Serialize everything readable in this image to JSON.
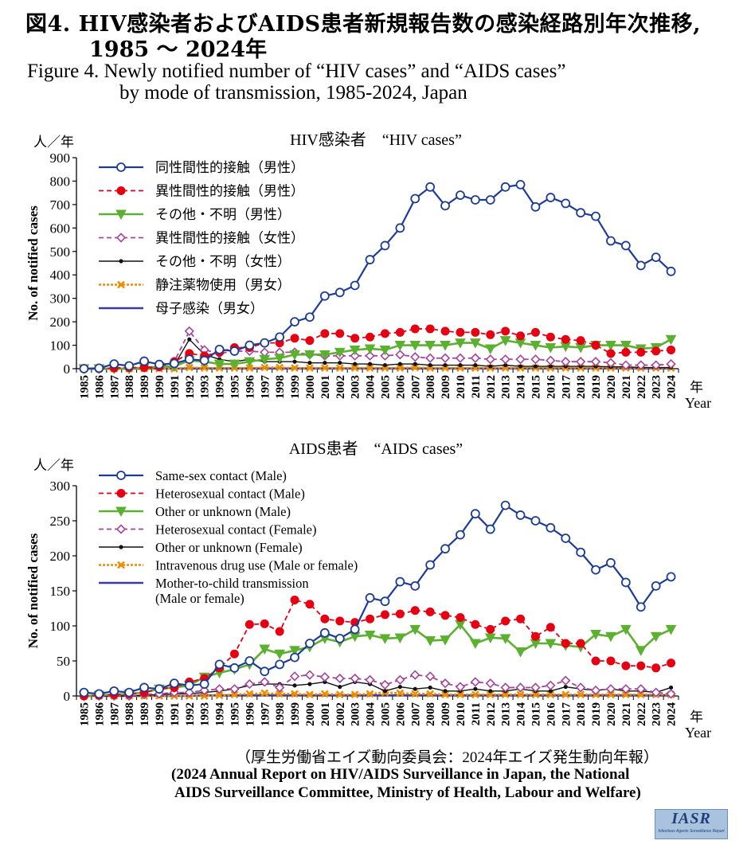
{
  "titles": {
    "jp_line1": "図4. HIV感染者およびAIDS患者新規報告数の感染経路別年次推移,",
    "jp_line2": "1985 ～ 2024年",
    "en_line1": "Figure 4. Newly notified number of “HIV cases” and “AIDS cases”",
    "en_line2": "by mode of transmission, 1985-2024, Japan"
  },
  "source": {
    "jp": "（厚生労働省エイズ動向委員会：2024年エイズ発生動向年報）",
    "en_line1": "(2024 Annual Report on HIV/AIDS Surveillance in Japan, the National",
    "en_line2": "AIDS Surveillance Committee, Ministry of Health, Labour and Welfare)"
  },
  "logo": {
    "main": "IASR",
    "sub": "Infectious Agents Surveillance Report"
  },
  "colors": {
    "navy": "#1c3c96",
    "red": "#e60012",
    "green": "#5bb030",
    "purple": "#a4449c",
    "black": "#111111",
    "orange": "#f08c00",
    "indigo": "#3a3aa0"
  },
  "chart_data": [
    {
      "type": "line",
      "title": "HIV感染者　“HIV cases”",
      "unit_label": "人／年",
      "ylabel": "No. of notified cases",
      "xlabel_jp": "年",
      "xlabel_en": "Year",
      "ylim": [
        0,
        900
      ],
      "yticks": [
        0,
        100,
        200,
        300,
        400,
        500,
        600,
        700,
        800,
        900
      ],
      "legend_position": "top-left",
      "x": [
        1985,
        1986,
        1987,
        1988,
        1989,
        1990,
        1991,
        1992,
        1993,
        1994,
        1995,
        1996,
        1997,
        1998,
        1999,
        2000,
        2001,
        2002,
        2003,
        2004,
        2005,
        2006,
        2007,
        2008,
        2009,
        2010,
        2011,
        2012,
        2013,
        2014,
        2015,
        2016,
        2017,
        2018,
        2019,
        2020,
        2021,
        2022,
        2023,
        2024
      ],
      "series": [
        {
          "name": "同性間性的接触（男性）",
          "style": "navy",
          "values": [
            0,
            2,
            20,
            12,
            32,
            18,
            22,
            40,
            35,
            82,
            75,
            100,
            110,
            135,
            200,
            220,
            310,
            325,
            355,
            465,
            525,
            600,
            725,
            775,
            695,
            740,
            720,
            720,
            775,
            785,
            690,
            730,
            705,
            665,
            650,
            545,
            525,
            440,
            475,
            415
          ]
        },
        {
          "name": "異性間性的接触（男性）",
          "style": "red",
          "values": [
            0,
            0,
            3,
            5,
            5,
            8,
            30,
            65,
            55,
            70,
            90,
            90,
            110,
            110,
            130,
            120,
            150,
            150,
            130,
            135,
            150,
            155,
            170,
            170,
            160,
            155,
            155,
            145,
            160,
            140,
            155,
            135,
            125,
            120,
            100,
            65,
            70,
            70,
            75,
            80
          ]
        },
        {
          "name": "その他・不明（男性）",
          "style": "green",
          "values": [
            0,
            0,
            0,
            0,
            5,
            8,
            10,
            35,
            30,
            20,
            20,
            30,
            40,
            45,
            60,
            60,
            60,
            70,
            80,
            85,
            80,
            100,
            100,
            100,
            100,
            110,
            110,
            85,
            120,
            110,
            100,
            90,
            95,
            90,
            100,
            100,
            100,
            85,
            90,
            125
          ]
        },
        {
          "name": "異性間性的接触（女性）",
          "style": "purple",
          "values": [
            0,
            0,
            0,
            0,
            5,
            8,
            30,
            160,
            80,
            65,
            75,
            75,
            70,
            70,
            70,
            60,
            55,
            55,
            55,
            55,
            55,
            60,
            50,
            45,
            45,
            45,
            45,
            40,
            40,
            40,
            40,
            35,
            30,
            30,
            30,
            25,
            15,
            15,
            15,
            20
          ]
        },
        {
          "name": "その他・不明（女性）",
          "style": "black",
          "values": [
            0,
            0,
            0,
            0,
            2,
            5,
            15,
            125,
            60,
            40,
            30,
            40,
            30,
            30,
            30,
            25,
            25,
            25,
            20,
            20,
            15,
            20,
            20,
            15,
            15,
            15,
            15,
            10,
            15,
            10,
            10,
            10,
            10,
            10,
            10,
            8,
            8,
            5,
            5,
            5
          ]
        },
        {
          "name": "静注薬物使用（男女）",
          "style": "orange",
          "values": [
            0,
            0,
            0,
            0,
            0,
            0,
            0,
            5,
            3,
            3,
            3,
            3,
            5,
            5,
            3,
            3,
            3,
            3,
            3,
            3,
            3,
            3,
            5,
            3,
            3,
            3,
            3,
            3,
            3,
            3,
            3,
            3,
            3,
            3,
            3,
            3,
            3,
            3,
            3,
            3
          ]
        },
        {
          "name": "母子感染（男女）",
          "style": "indigo",
          "values": [
            0,
            0,
            0,
            0,
            0,
            0,
            0,
            1,
            1,
            1,
            1,
            1,
            1,
            1,
            1,
            1,
            1,
            1,
            1,
            1,
            1,
            1,
            1,
            1,
            1,
            1,
            1,
            1,
            1,
            1,
            1,
            1,
            1,
            1,
            1,
            1,
            1,
            1,
            1,
            1
          ]
        }
      ]
    },
    {
      "type": "line",
      "title": "AIDS患者　“AIDS cases”",
      "unit_label": "人／年",
      "ylabel": "No. of notified cases",
      "xlabel_jp": "年",
      "xlabel_en": "Year",
      "ylim": [
        0,
        300
      ],
      "yticks": [
        0,
        50,
        100,
        150,
        200,
        250,
        300
      ],
      "legend_position": "top-left",
      "x": [
        1985,
        1986,
        1987,
        1988,
        1989,
        1990,
        1991,
        1992,
        1993,
        1994,
        1995,
        1996,
        1997,
        1998,
        1999,
        2000,
        2001,
        2002,
        2003,
        2004,
        2005,
        2006,
        2007,
        2008,
        2009,
        2010,
        2011,
        2012,
        2013,
        2014,
        2015,
        2016,
        2017,
        2018,
        2019,
        2020,
        2021,
        2022,
        2023,
        2024
      ],
      "series": [
        {
          "name": "Same-sex contact (Male)",
          "style": "navy",
          "values": [
            5,
            3,
            7,
            5,
            12,
            10,
            18,
            15,
            17,
            45,
            40,
            50,
            35,
            45,
            55,
            75,
            90,
            82,
            95,
            140,
            135,
            163,
            157,
            187,
            210,
            230,
            260,
            238,
            272,
            258,
            250,
            240,
            225,
            205,
            180,
            190,
            162,
            127,
            157,
            170
          ]
        },
        {
          "name": "Heterosexual contact (Male)",
          "style": "red",
          "values": [
            0,
            1,
            2,
            3,
            5,
            10,
            12,
            20,
            25,
            40,
            60,
            102,
            103,
            92,
            137,
            131,
            110,
            107,
            105,
            110,
            116,
            117,
            122,
            120,
            115,
            112,
            102,
            95,
            107,
            110,
            85,
            98,
            75,
            75,
            50,
            50,
            43,
            43,
            40,
            47
          ]
        },
        {
          "name": "Other or unknown (Male)",
          "style": "green",
          "values": [
            0,
            1,
            2,
            3,
            5,
            10,
            12,
            15,
            27,
            33,
            38,
            45,
            67,
            60,
            65,
            70,
            82,
            77,
            85,
            87,
            82,
            83,
            95,
            79,
            80,
            102,
            75,
            83,
            82,
            63,
            75,
            75,
            72,
            70,
            88,
            85,
            95,
            65,
            85,
            95
          ]
        },
        {
          "name": "Heterosexual contact (Female)",
          "style": "purple",
          "values": [
            0,
            0,
            0,
            0,
            2,
            3,
            5,
            5,
            8,
            10,
            10,
            17,
            20,
            12,
            28,
            30,
            27,
            25,
            25,
            23,
            16,
            23,
            30,
            28,
            18,
            13,
            20,
            18,
            12,
            12,
            12,
            15,
            22,
            12,
            8,
            10,
            10,
            10,
            5,
            3
          ]
        },
        {
          "name": "Other or unknown (Female)",
          "style": "black",
          "values": [
            0,
            0,
            0,
            0,
            1,
            2,
            3,
            3,
            5,
            7,
            10,
            15,
            17,
            17,
            15,
            17,
            20,
            13,
            20,
            17,
            7,
            13,
            10,
            12,
            7,
            7,
            10,
            7,
            7,
            10,
            7,
            7,
            13,
            10,
            8,
            10,
            7,
            7,
            5,
            12
          ]
        },
        {
          "name": "Intravenous drug use (Male or female)",
          "style": "orange",
          "values": [
            0,
            0,
            0,
            0,
            0,
            0,
            0,
            0,
            0,
            1,
            2,
            3,
            4,
            3,
            3,
            2,
            3,
            2,
            2,
            3,
            5,
            4,
            3,
            3,
            2,
            2,
            2,
            2,
            2,
            2,
            2,
            2,
            2,
            2,
            2,
            2,
            2,
            2,
            2,
            2
          ]
        },
        {
          "name": "Mother-to-child transmission\n(Male or female)",
          "style": "indigo",
          "values": [
            0,
            0,
            0,
            0,
            0,
            0,
            0,
            0,
            1,
            1,
            1,
            1,
            1,
            1,
            1,
            1,
            1,
            1,
            1,
            1,
            1,
            1,
            1,
            1,
            1,
            1,
            1,
            1,
            1,
            1,
            1,
            1,
            1,
            1,
            1,
            1,
            1,
            1,
            1,
            1
          ]
        }
      ]
    }
  ]
}
